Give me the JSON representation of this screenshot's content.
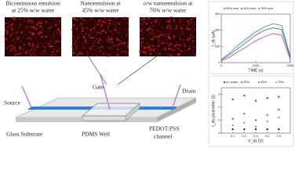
{
  "panels": [
    {
      "label_1": "Bicontinuous emulsion",
      "label_2": "at 25% w/w water"
    },
    {
      "label_1": "Nanoemulsion at",
      "label_2": "45% w/w water"
    },
    {
      "label_1": "o/w nanoemulsion at",
      "label_2": "76% w/w water"
    }
  ],
  "device": {
    "source": "Source",
    "gate": "Gate",
    "drain": "Drain",
    "substrate": "Glass Substrate",
    "well": "PDMS Well",
    "channel_1": "PEDOT:PSS",
    "channel_2": "channel"
  },
  "chart_data": [
    {
      "type": "line",
      "xlabel": "TIME (s)",
      "ylabel": "I_ds (μA)",
      "x": [
        0,
        250,
        500,
        750,
        1000,
        1250,
        1500,
        1750,
        2000
      ],
      "xlim": [
        0,
        2000
      ],
      "xticks": [
        0,
        1000,
        2000
      ],
      "ylim": [
        0,
        300
      ],
      "yticks": [
        0,
        100,
        200,
        300
      ],
      "series": [
        {
          "name": "25% w/w",
          "color": "#2a9d3a",
          "values": [
            20,
            60,
            110,
            150,
            190,
            220,
            240,
            230,
            40
          ]
        },
        {
          "name": "45% w/w",
          "color": "#3b5bdb",
          "values": [
            15,
            50,
            90,
            130,
            170,
            200,
            215,
            205,
            30
          ]
        },
        {
          "name": "76% w/w",
          "color": "#b03ab0",
          "values": [
            10,
            35,
            70,
            100,
            135,
            160,
            180,
            170,
            20
          ]
        }
      ]
    },
    {
      "type": "scatter",
      "xlabel": "V_ds (V)",
      "ylabel": "I_ds parameter (1)",
      "x": [
        0.1,
        0.2,
        0.3,
        0.4,
        0.5
      ],
      "xlim": [
        0,
        0.6
      ],
      "xticks": [
        0.1,
        0.2,
        0.3,
        0.4,
        0.5
      ],
      "ylim": [
        0,
        3.5
      ],
      "yticks": [
        0,
        1,
        2,
        3
      ],
      "series": [
        {
          "name": "no water",
          "color": "#222222",
          "values": [
            0.3,
            0.3,
            0.3,
            0.3,
            0.3
          ]
        },
        {
          "name": "25%",
          "color": "#d62828",
          "values": [
            2.6,
            2.9,
            2.5,
            2.7,
            2.8
          ]
        },
        {
          "name": "45%",
          "color": "#2a9d3a",
          "values": [
            1.1,
            1.5,
            1.0,
            1.4,
            1.8
          ]
        },
        {
          "name": "76%",
          "color": "#999999",
          "values": [
            0.6,
            0.8,
            0.5,
            0.9,
            1.2
          ]
        }
      ]
    }
  ]
}
